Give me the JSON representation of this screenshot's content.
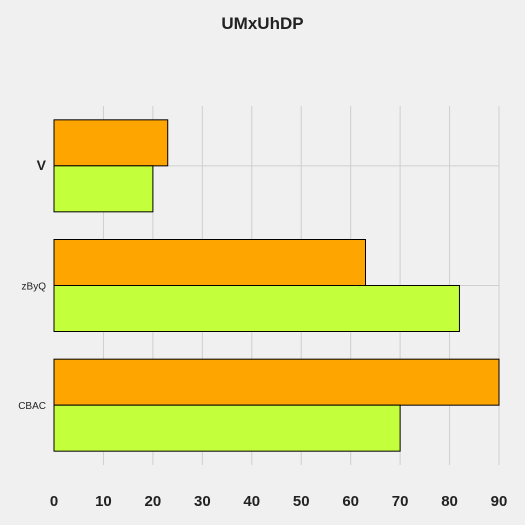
{
  "chart_data": {
    "type": "bar",
    "orientation": "horizontal",
    "title": "UMxUhDP",
    "categories": [
      "V",
      "zByQ",
      "CBAC"
    ],
    "series": [
      {
        "values": [
          23,
          63,
          90
        ],
        "color": "#ffa500"
      },
      {
        "values": [
          20,
          82,
          70
        ],
        "color": "#c4ff3c"
      }
    ],
    "xlim": [
      0,
      90
    ],
    "x_ticks": [
      0,
      10,
      20,
      30,
      40,
      50,
      60,
      70,
      80,
      90
    ],
    "grid": true,
    "legend": "none"
  }
}
